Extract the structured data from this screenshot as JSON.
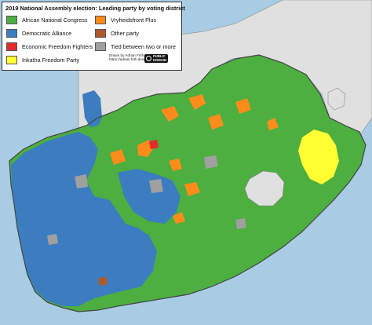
{
  "legend": {
    "title": "2019 National Assembly election: Leading party by voting district",
    "items": [
      {
        "label": "African National Congress",
        "color": "#4caf3f"
      },
      {
        "label": "Democratic Alliance",
        "color": "#3b7dc0"
      },
      {
        "label": "Economic Freedom Fighters",
        "color": "#e32b2b"
      },
      {
        "label": "Inkatha Freedom Party",
        "color": "#ffff33"
      },
      {
        "label": "Vryheidsfront Plus",
        "color": "#ff8c1a"
      },
      {
        "label": "Other party",
        "color": "#b0592b"
      },
      {
        "label": "Tied between two or more",
        "color": "#a0a0a0"
      }
    ],
    "credit_line1": "Drawn by Adrian Frith",
    "credit_line2": "https://adrian.frith.dev/",
    "public_domain_line1": "PUBLIC",
    "public_domain_line2": "DOMAIN"
  },
  "colors": {
    "ocean": "#a9cce5",
    "neighbor": "#e0e0e0",
    "border": "#444444"
  }
}
